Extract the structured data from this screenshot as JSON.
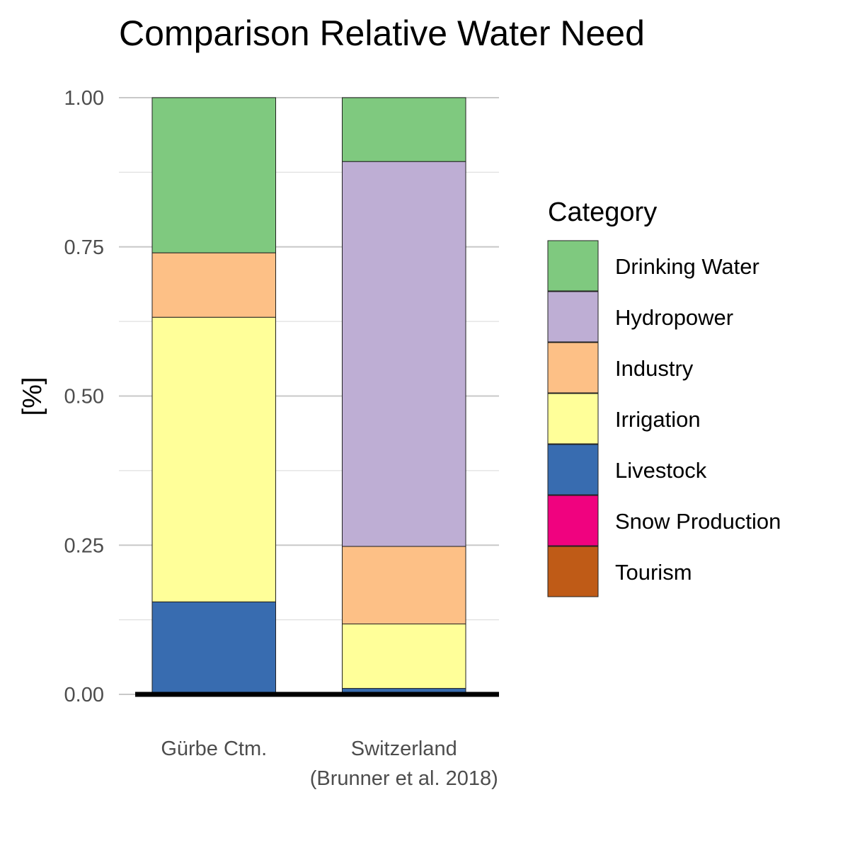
{
  "chart_data": {
    "type": "bar",
    "stacked": true,
    "title": "Comparison Relative Water Need",
    "xlabel": "",
    "ylabel": "[%]",
    "ylim": [
      0,
      1
    ],
    "y_ticks": [
      "0.00",
      "0.25",
      "0.50",
      "0.75",
      "1.00"
    ],
    "grid": true,
    "legend_title": "Category",
    "legend_position": "right",
    "categories": [
      [
        "Gürbe Ctm."
      ],
      [
        "Switzerland",
        "(Brunner et al. 2018)"
      ]
    ],
    "series": [
      {
        "name": "Drinking Water",
        "color": "#7FC97F",
        "values": [
          0.26,
          0.107
        ]
      },
      {
        "name": "Hydropower",
        "color": "#BEAED4",
        "values": [
          0.0,
          0.645
        ]
      },
      {
        "name": "Industry",
        "color": "#FDC086",
        "values": [
          0.108,
          0.13
        ]
      },
      {
        "name": "Irrigation",
        "color": "#FFFF99",
        "values": [
          0.477,
          0.108
        ]
      },
      {
        "name": "Livestock",
        "color": "#386CB0",
        "values": [
          0.155,
          0.01
        ]
      },
      {
        "name": "Snow Production",
        "color": "#F0027F",
        "values": [
          0.0,
          0.0
        ]
      },
      {
        "name": "Tourism",
        "color": "#BF5B17",
        "values": [
          0.0,
          0.0
        ]
      }
    ]
  }
}
